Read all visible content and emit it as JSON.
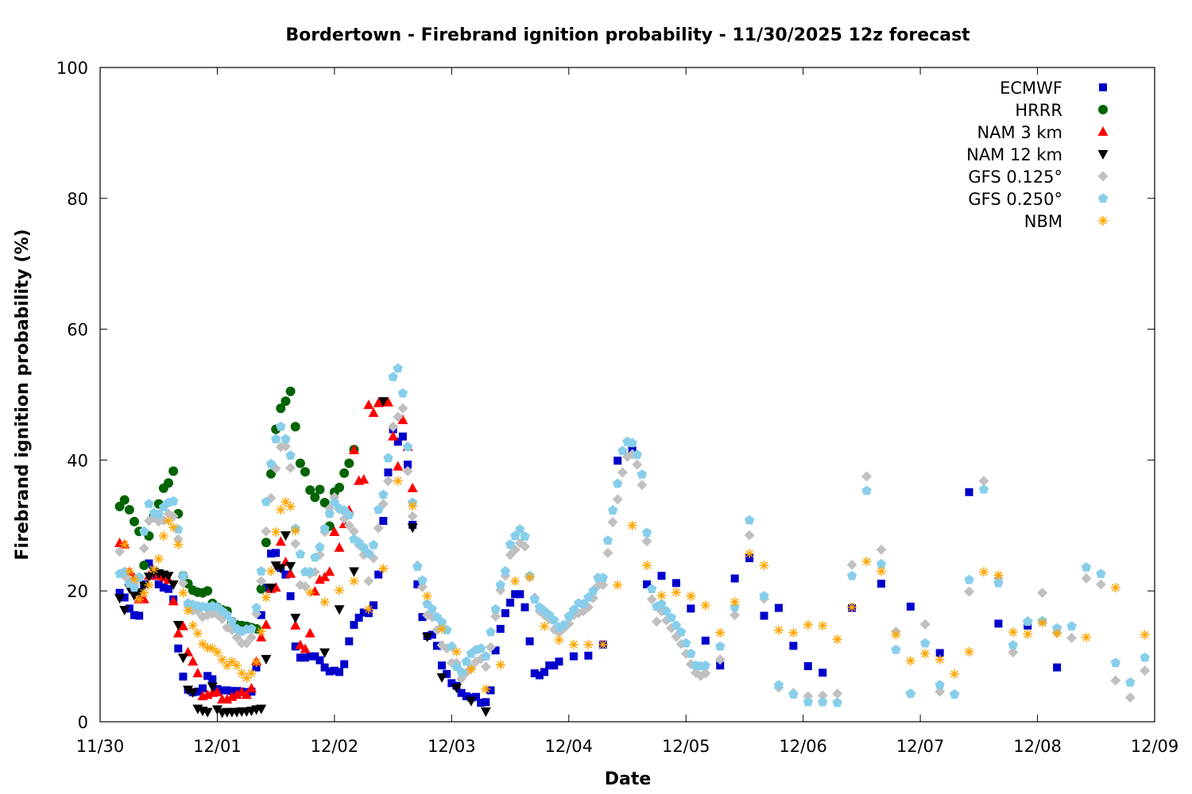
{
  "chart_data": {
    "type": "scatter",
    "title": "Bordertown - Firebrand ignition probability - 11/30/2025 12z forecast",
    "xlabel": "Date",
    "ylabel": "Firebrand ignition probability (%)",
    "x_units": "hours since 11/30 00",
    "xlim": [
      0,
      216
    ],
    "ylim": [
      0,
      100
    ],
    "xticks": [
      {
        "value": 0,
        "label": "11/30"
      },
      {
        "value": 24,
        "label": "12/01"
      },
      {
        "value": 48,
        "label": "12/02"
      },
      {
        "value": 72,
        "label": "12/03"
      },
      {
        "value": 96,
        "label": "12/04"
      },
      {
        "value": 120,
        "label": "12/05"
      },
      {
        "value": 144,
        "label": "12/06"
      },
      {
        "value": 168,
        "label": "12/07"
      },
      {
        "value": 192,
        "label": "12/08"
      },
      {
        "value": 216,
        "label": "12/09"
      }
    ],
    "yticks": [
      {
        "value": 0,
        "label": "0"
      },
      {
        "value": 20,
        "label": "20"
      },
      {
        "value": 40,
        "label": "40"
      },
      {
        "value": 60,
        "label": "60"
      },
      {
        "value": 80,
        "label": "80"
      },
      {
        "value": 100,
        "label": "100"
      }
    ],
    "grid": false,
    "legend_position": "top-right",
    "series": [
      {
        "name": "ECMWF",
        "marker": "square",
        "color": "#0000cc",
        "segments": [
          {
            "start": 4,
            "step": 1,
            "values": [
              19.7,
              19,
              17.3,
              16.3,
              16.2,
              21,
              24.2,
              22.3,
              21,
              20.5,
              20.3,
              18.7,
              11.2,
              6.9,
              4.9,
              4.5,
              4.6,
              5.1,
              7,
              6.5,
              5,
              4.8,
              4.8,
              4.7,
              4.7,
              4.6,
              4.5,
              4.6,
              8.3,
              16.3,
              20.5,
              25.7,
              25.8,
              23.5,
              22.5,
              19.2,
              11.5,
              9.8,
              9.8,
              10,
              10,
              9.4,
              8.3,
              7.7,
              7.8,
              7.6,
              8.8,
              12.3,
              14.8,
              15.9,
              16.7,
              16.6,
              17.8,
              22.5,
              30.7,
              38.1,
              44.7,
              42.8,
              43.6,
              39.3,
              30.1,
              21,
              16,
              13.1,
              13.3,
              11.6,
              8.6,
              7.3,
              5.9,
              5.5,
              4.4,
              3.9,
              3.7,
              3.8,
              2.9,
              3,
              4.8,
              10.9,
              14.2,
              16.6,
              18.2,
              19.5,
              19.5,
              17.5,
              12.3,
              7.4,
              7.1,
              7.6,
              8.6,
              8.6,
              9.2
            ]
          },
          {
            "start": 97,
            "step": 3,
            "values": [
              10,
              10.1,
              11.8,
              39.9,
              41.5,
              21,
              22.3,
              21.2,
              17.3,
              12.4,
              8.6,
              21.9,
              25,
              16.2,
              17.4,
              11.6,
              8.5,
              7.5
            ]
          },
          {
            "start": 154,
            "step": 6,
            "values": [
              17.4,
              21.1,
              17.6,
              10.5,
              35.1,
              15,
              14.7,
              8.3
            ]
          }
        ]
      },
      {
        "name": "HRRR",
        "marker": "circle",
        "color": "#006400",
        "segments": [
          {
            "start": 4,
            "step": 1,
            "values": [
              32.9,
              33.9,
              32.4,
              30.6,
              29.1,
              23.9,
              28.4,
              31.5,
              33.3,
              35.7,
              36.5,
              38.3,
              31.8,
              22.3,
              21.1,
              20.1,
              19.8,
              19.7,
              20,
              18.1,
              17.5,
              17.1,
              16.9,
              15.3,
              14.8,
              14.7,
              14.6,
              14.4,
              14.2,
              20.3,
              27.4,
              37.9,
              44.7,
              47.9,
              49,
              50.5,
              45.1,
              39.5,
              38.2,
              35.4,
              34.3,
              35.5,
              33.5,
              29.9,
              35.1,
              35.8,
              38,
              39.5,
              41.6
            ]
          }
        ]
      },
      {
        "name": "NAM 3 km",
        "marker": "triangle-up",
        "color": "#ff0000",
        "segments": [
          {
            "start": 4,
            "step": 1,
            "values": [
              27.3,
              27.1,
              22.9,
              22,
              18.7,
              18.7,
              22.3,
              22.8,
              22.3,
              22.1,
              21.7,
              18.4,
              13.5,
              14.6,
              10.6,
              9.2,
              7.4,
              3.9,
              4.1,
              4.4,
              4.5,
              3.4,
              3.4,
              3.8,
              4.1,
              4.5,
              4.1,
              5.1,
              9.2,
              12.9,
              14.8,
              20.3,
              20.5,
              27.5,
              24.4,
              22.6,
              14.7,
              11.7,
              11.1,
              13.5,
              19.9,
              21.7,
              22.1,
              22.9,
              29,
              26.6,
              30.2,
              32.3,
              41.5,
              36.8,
              37,
              48.4,
              47.2,
              48.7,
              48.8,
              48.8,
              43.6,
              39,
              46.1,
              42,
              35.7
            ]
          }
        ]
      },
      {
        "name": "NAM 12 km",
        "marker": "triangle-down",
        "color": "#000000",
        "segments": [
          {
            "start": 4,
            "step": 1,
            "values": [
              18.9,
              17.1,
              20.4,
              19.3,
              19.8,
              20.8,
              22.2,
              22.9,
              22.7,
              22.5,
              22.3,
              21,
              14.8,
              9.8,
              4.9,
              4.5,
              2,
              1.7,
              1.5,
              5.4,
              1.9,
              1.4,
              1.5,
              1.5,
              1.5,
              1.6,
              1.6,
              1.7,
              1.9,
              2,
              9.6,
              20.5,
              23.9,
              23.5,
              28.5,
              23.8,
              15.9
            ]
          },
          {
            "start": 46,
            "step": 3,
            "values": [
              10.6,
              17.2,
              23,
              null,
              49,
              null,
              29.7,
              13,
              6.8,
              5.2,
              3.2,
              1.6
            ]
          }
        ]
      },
      {
        "name": "GFS 0.125°",
        "marker": "diamond",
        "color": "#c0c0c0",
        "segments": [
          {
            "start": 4,
            "step": 1,
            "values": [
              26,
              22.3,
              21.5,
              21,
              22,
              26.5,
              30.7,
              31.2,
              30.6,
              30.8,
              31.8,
              31.4,
              27.9,
              21.2,
              17.8,
              17,
              16.9,
              16,
              16.3,
              16.5,
              16.4,
              15.7,
              14.4,
              14,
              12.9,
              12,
              12,
              12.9,
              16.5,
              21.5,
              29.1,
              34.2,
              38.7,
              42,
              42.1,
              38.8,
              27.2,
              20.9,
              20.7,
              22.6,
              22.9,
              25.5,
              29,
              32.6,
              34.3,
              32.5,
              31,
              30,
              29.1,
              27,
              25.5,
              21.5,
              25,
              29.6,
              33.3,
              36.8,
              45.1,
              46.6,
              47.9,
              38.3,
              31.4,
              23.9,
              20.6,
              16.3,
              16,
              14,
              11.7,
              11.2,
              9,
              9,
              6.6,
              7.5,
              8.3,
              9.2,
              9.6,
              8.4,
              11.4,
              16.1,
              20.1,
              22.3,
              25.5,
              26.3,
              27.3,
              26.8,
              22.1,
              19,
              16.9,
              16.3,
              15.7,
              14.1,
              13.6,
              14.3,
              15,
              16.3,
              16.6,
              16.9,
              17.5,
              18.9,
              20.8,
              20.9,
              25.8,
              30.5,
              34,
              38.1,
              40.5,
              40.9,
              39.3,
              36.2,
              27.6,
              18.7,
              15.3,
              16.9,
              15.5,
              14.3,
              13,
              11.9,
              10.4,
              8.8,
              7.5,
              7,
              7.4
            ]
          },
          {
            "start": 127,
            "step": 3,
            "values": [
              9.5,
              16.3,
              28.5,
              18.8,
              5.2,
              4.4,
              3.9,
              4,
              4.3,
              24,
              37.5,
              26.3,
              13.8,
              4.3,
              14.9,
              4.6,
              4.2,
              19.9,
              36.8,
              21.9,
              10.6,
              15.4,
              19.7,
              13.6,
              12.8,
              21.9,
              21,
              6.3,
              3.7,
              7.8
            ]
          }
        ]
      },
      {
        "name": "GFS 0.250°",
        "marker": "pentagon",
        "color": "#87ceeb",
        "segments": [
          {
            "start": 4,
            "step": 1,
            "values": [
              22.6,
              22.9,
              21.1,
              20.5,
              22.1,
              29.1,
              33.3,
              31.9,
              31.7,
              32.8,
              33.5,
              33.7,
              29.4,
              22.3,
              18.1,
              17.9,
              17.7,
              17.6,
              17.5,
              17.7,
              17.5,
              16.9,
              16.3,
              15.3,
              14.2,
              13.8,
              14.1,
              14.2,
              17.4,
              23,
              33.6,
              39.4,
              43.2,
              45.1,
              43.2,
              40.7,
              29.5,
              25.6,
              22.9,
              22.9,
              25.1,
              26.7,
              29.5,
              31.8,
              33.5,
              32.6,
              32.3,
              31.6,
              27.9,
              27.4,
              26.6,
              25.7,
              27,
              32.4,
              34.7,
              40.3,
              52.7,
              54,
              50.2,
              42,
              33.5,
              23.7,
              21.6,
              18,
              17.2,
              16,
              15.2,
              14,
              11.5,
              8.4,
              7.6,
              9.2,
              10.4,
              11,
              11.2,
              10,
              13.7,
              17.2,
              20.9,
              23,
              27.1,
              28.4,
              29.4,
              28.3,
              22.3,
              18.7,
              17.5,
              16.9,
              16.3,
              15.5,
              14.4,
              14.8,
              16.1,
              17.1,
              18.1,
              18,
              19,
              20,
              22,
              22,
              27.7,
              32.3,
              36.4,
              41.4,
              42.8,
              42.6,
              40.8,
              37.8,
              28.9,
              20.3,
              17.6,
              18,
              16.9,
              15.9,
              14.7,
              13.7,
              12,
              10.4,
              8.6,
              8.5,
              8.6
            ]
          },
          {
            "start": 127,
            "step": 3,
            "values": [
              11.5,
              17.5,
              30.8,
              19.2,
              5.6,
              4.2,
              3,
              3,
              2.9,
              22.3,
              35.3,
              24.1,
              11,
              4.3,
              12,
              5.6,
              4.2,
              21.7,
              35.5,
              21.2,
              11.7,
              15.3,
              15.4,
              14.3,
              14.6,
              23.6,
              22.6,
              9,
              6,
              9.8
            ]
          }
        ]
      },
      {
        "name": "NBM",
        "marker": "asterisk",
        "color": "#ffa500",
        "segments": [
          {
            "start": 5,
            "step": 1,
            "values": [
              27.1,
              23,
              21.8,
              18.7,
              19.7,
              20.9,
              23.3,
              24.9,
              28.4,
              30.7,
              29.7,
              27.1,
              19.7,
              17,
              14.7,
              13.5,
              11.9,
              11.3,
              11.2,
              10.6,
              9.5,
              8.6,
              9.2,
              8.6,
              7.4,
              6.7,
              7.4,
              9.1,
              13.8,
              19,
              23,
              29,
              32.4,
              33.6,
              32.9
            ]
          },
          {
            "start": 40,
            "step": 3,
            "values": [
              29.2,
              19.8,
              18.3,
              20.1,
              21.5,
              17.2,
              23.4,
              36.8,
              33,
              19.2,
              14.2,
              10.7,
              8,
              5,
              8.7,
              21.5,
              22.1,
              14.6,
              12.5,
              11.8,
              11.8,
              11.8,
              20.9,
              30,
              23.9,
              19.3,
              19.8,
              19.2,
              17.8,
              13.6,
              18.3,
              25.7,
              23.9,
              14,
              13.6,
              14.8,
              14.7,
              12.6,
              17.5,
              24.5,
              23,
              13.3,
              9.3,
              10.4,
              9.5,
              7.3,
              10.7,
              22.9,
              22.4,
              13.7,
              13.4,
              15.1,
              13.5
            ]
          },
          {
            "start": 202,
            "step": 6,
            "values": [
              12.9,
              20.5,
              13.3
            ]
          }
        ]
      }
    ]
  }
}
